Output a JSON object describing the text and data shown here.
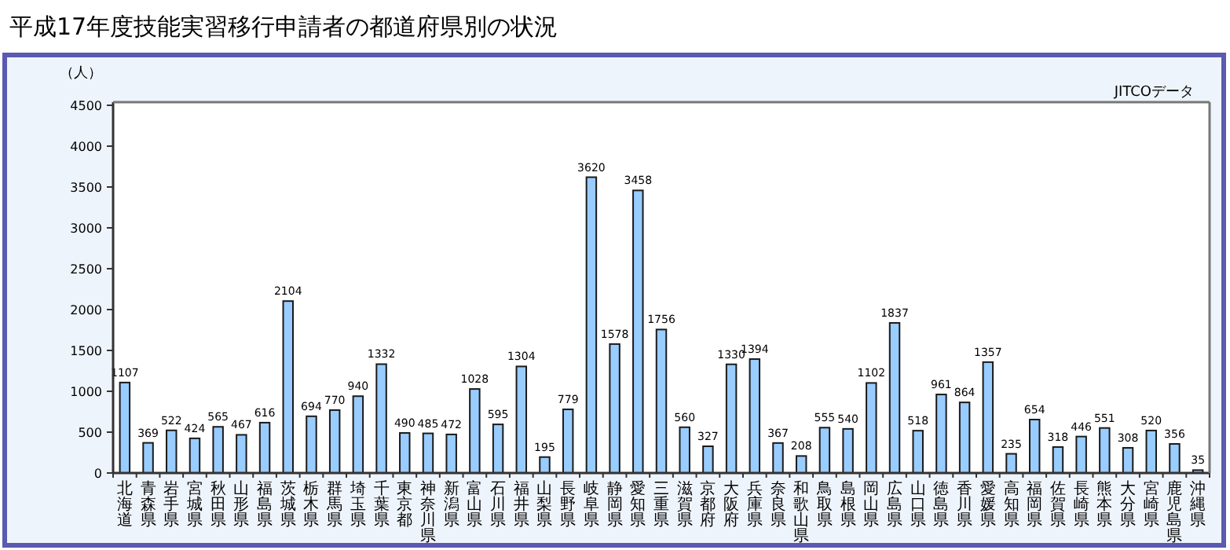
{
  "chart_data": {
    "type": "bar",
    "title": "平成17年度技能実習移行申請者の都道府県別の状況",
    "ylabel": "（人）",
    "annotations": [
      "JITCOデータ"
    ],
    "categories": [
      "北海道",
      "青森県",
      "岩手県",
      "宮城県",
      "秋田県",
      "山形県",
      "福島県",
      "茨城県",
      "栃木県",
      "群馬県",
      "埼玉県",
      "千葉県",
      "東京都",
      "神奈川県",
      "新潟県",
      "富山県",
      "石川県",
      "福井県",
      "山梨県",
      "長野県",
      "岐阜県",
      "静岡県",
      "愛知県",
      "三重県",
      "滋賀県",
      "京都府",
      "大阪府",
      "兵庫県",
      "奈良県",
      "和歌山県",
      "鳥取県",
      "島根県",
      "岡山県",
      "広島県",
      "山口県",
      "徳島県",
      "香川県",
      "愛媛県",
      "高知県",
      "福岡県",
      "佐賀県",
      "長崎県",
      "熊本県",
      "大分県",
      "宮崎県",
      "鹿児島県",
      "沖縄県"
    ],
    "values": [
      1107,
      369,
      522,
      424,
      565,
      467,
      616,
      2104,
      694,
      770,
      940,
      1332,
      490,
      485,
      472,
      1028,
      595,
      1304,
      195,
      779,
      3620,
      1578,
      3458,
      1756,
      560,
      327,
      1330,
      1394,
      367,
      208,
      555,
      540,
      1102,
      1837,
      518,
      961,
      864,
      1357,
      235,
      654,
      318,
      446,
      551,
      308,
      520,
      356,
      35
    ],
    "color": "#99ccff",
    "data_labels": true,
    "ylim": [
      0,
      4500
    ],
    "yticks": [
      0,
      500,
      1000,
      1500,
      2000,
      2500,
      3000,
      3500,
      4000,
      4500
    ],
    "grid": false
  }
}
